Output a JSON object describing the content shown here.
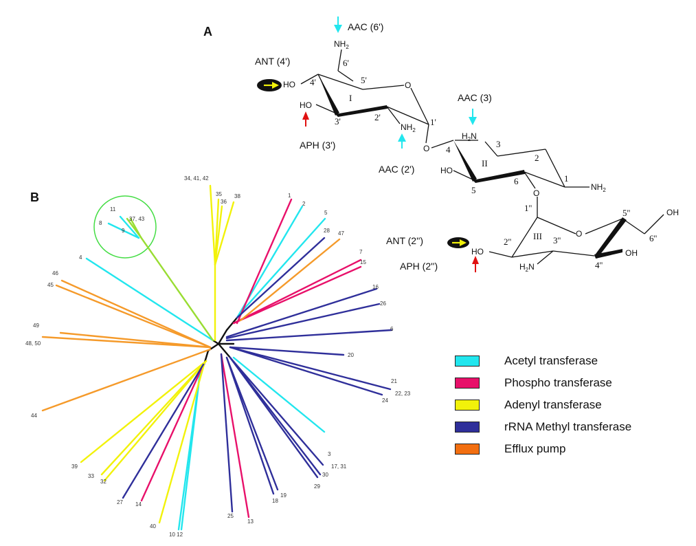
{
  "panels": {
    "a_label": "A",
    "b_label": "B"
  },
  "colors": {
    "acetyl": "#22e6ee",
    "phospho": "#e8106a",
    "adenyl": "#f2f20a",
    "rrna": "#2f2f9a",
    "efflux": "#f59a2a",
    "black": "#111111",
    "red_arrow": "#e01010",
    "circle": "#44dd44"
  },
  "structure": {
    "enzymes": {
      "aac6": "AAC (6')",
      "ant4": "ANT (4')",
      "aph3": "APH (3')",
      "aac3": "AAC (3)",
      "aac2": "AAC (2')",
      "ant2": "ANT (2'')",
      "aph2": "APH (2'')"
    },
    "atoms": {
      "nh2_top": "NH",
      "nh2_top_sub": "2",
      "ho_ring1": "HO",
      "ho_ring1_3": "HO",
      "nh2_ring1": "NH",
      "nh2_ring1_sub": "2",
      "o_ring1": "O",
      "o_link1": "O",
      "h2n_ring2": "H",
      "h2n_ring2_sub": "2",
      "h2n_ring2_n": "N",
      "ho_ring2": "HO",
      "nh2_ring2": "NH",
      "nh2_ring2_sub": "2",
      "o_link2": "O",
      "o_ring3": "O",
      "oh_ring3_top": "OH",
      "ho_ring3": "HO",
      "h2n_ring3": "H",
      "h2n_ring3_sub": "2",
      "h2n_ring3_n": "N",
      "oh_ring3": "OH"
    },
    "positions": {
      "p6p": "6'",
      "p5p": "5'",
      "p4p": "4'",
      "p3p": "3'",
      "p2p": "2'",
      "p1p": "1'",
      "p4": "4",
      "p3": "3",
      "p2": "2",
      "p1": "1",
      "p5": "5",
      "p6": "6",
      "p1pp": "1''",
      "p2pp": "2''",
      "p3pp": "3''",
      "p4pp": "4''",
      "p5pp": "5''",
      "p6pp": "6''"
    },
    "rings": {
      "r1": "I",
      "r2": "II",
      "r3": "III"
    }
  },
  "tree": {
    "leaf_labels": {
      "l1": "1",
      "l2": "2",
      "l3": "3",
      "l4": "4",
      "l5": "5",
      "l6": "6",
      "l7": "7",
      "l8": "8",
      "l9": "9",
      "l11": "11",
      "l13": "13",
      "l14": "14",
      "l15": "15",
      "l16": "16",
      "l18": "18",
      "l19": "19",
      "l20": "20",
      "l21": "21",
      "l22_23": "22, 23",
      "l24": "24",
      "l25": "25",
      "l26": "26",
      "l27": "27",
      "l28": "28",
      "l29": "29",
      "l30": "30",
      "l32": "32",
      "l33": "33",
      "l34_41_42": "34, 41, 42",
      "l35": "35",
      "l36": "36",
      "l37_43": "37, 43",
      "l38": "38",
      "l39": "39",
      "l40": "40",
      "l44": "44",
      "l45": "45",
      "l46": "46",
      "l47": "47",
      "l48_50": "48, 50",
      "l49": "49",
      "l10_12": "10 12",
      "l17_31": "17, 31"
    }
  },
  "legend": [
    {
      "label": "Acetyl transferase",
      "color": "#22e6ee"
    },
    {
      "label": "Phospho transferase",
      "color": "#e8106a"
    },
    {
      "label": "Adenyl transferase",
      "color": "#f2f20a"
    },
    {
      "label": "rRNA Methyl transferase",
      "color": "#2f2f9a"
    },
    {
      "label": "Efflux pump",
      "color": "#f26e10"
    }
  ]
}
